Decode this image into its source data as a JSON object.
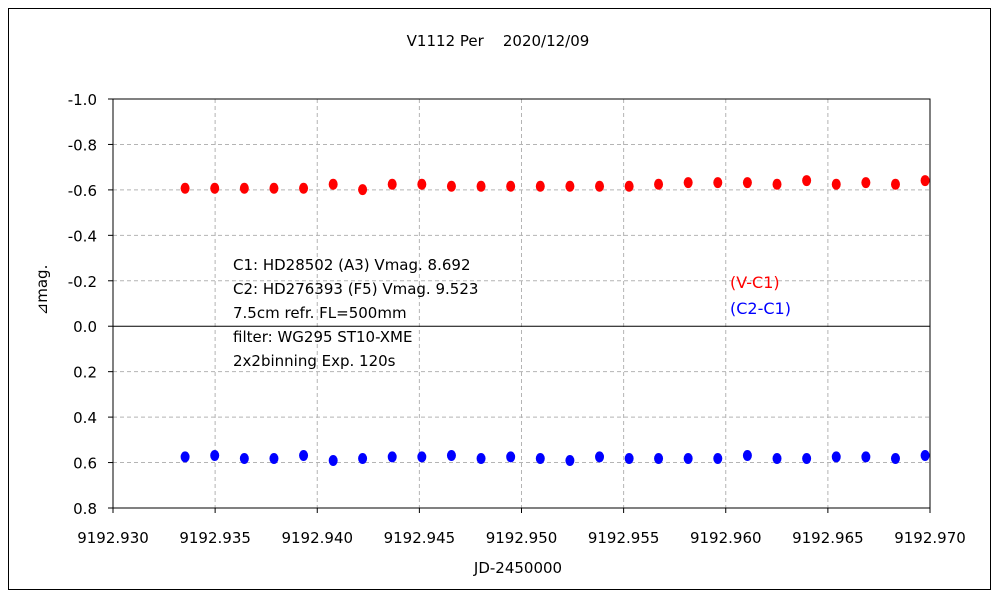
{
  "chart_data": {
    "type": "scatter",
    "title": "V1112 Per    2020/12/09",
    "xlabel": "JD-2450000",
    "ylabel": "⊿mag.",
    "xlim": [
      9192.93,
      9192.97
    ],
    "ylim": [
      -1.0,
      0.8
    ],
    "y_inverted": true,
    "grid": true,
    "xticks": [
      "9192.930",
      "9192.935",
      "9192.940",
      "9192.945",
      "9192.950",
      "9192.955",
      "9192.960",
      "9192.965",
      "9192.970"
    ],
    "xtick_values": [
      9192.93,
      9192.935,
      9192.94,
      9192.945,
      9192.95,
      9192.955,
      9192.96,
      9192.965,
      9192.97
    ],
    "yticks": [
      "-1.0",
      "-0.8",
      "-0.6",
      "-0.4",
      "-0.2",
      "0.0",
      "0.2",
      "0.4",
      "0.6",
      "0.8"
    ],
    "ytick_values": [
      -1.0,
      -0.8,
      -0.6,
      -0.4,
      -0.2,
      0.0,
      0.2,
      0.4,
      0.6,
      0.8
    ],
    "x": [
      9192.93353,
      9192.93498,
      9192.93643,
      9192.93788,
      9192.93933,
      9192.94078,
      9192.94222,
      9192.94367,
      9192.94512,
      9192.94657,
      9192.94802,
      9192.94947,
      9192.95092,
      9192.95237,
      9192.95382,
      9192.95527,
      9192.95671,
      9192.95816,
      9192.95961,
      9192.96106,
      9192.96251,
      9192.96396,
      9192.96541,
      9192.96686,
      9192.96831,
      9192.96976
    ],
    "series": [
      {
        "name": "(V-C1)",
        "color": "#ff0000",
        "values": [
          -0.607,
          -0.607,
          -0.607,
          -0.607,
          -0.607,
          -0.625,
          -0.601,
          -0.625,
          -0.625,
          -0.616,
          -0.616,
          -0.616,
          -0.616,
          -0.616,
          -0.616,
          -0.616,
          -0.625,
          -0.632,
          -0.632,
          -0.632,
          -0.625,
          -0.641,
          -0.625,
          -0.632,
          -0.625,
          -0.641
        ]
      },
      {
        "name": "(C2-C1)",
        "color": "#0000ff",
        "values": [
          0.575,
          0.569,
          0.582,
          0.582,
          0.569,
          0.591,
          0.582,
          0.575,
          0.575,
          0.569,
          0.582,
          0.575,
          0.582,
          0.591,
          0.575,
          0.582,
          0.582,
          0.582,
          0.582,
          0.569,
          0.582,
          0.582,
          0.575,
          0.575,
          0.582,
          0.569
        ]
      }
    ],
    "annotations": [
      "C1: HD28502 (A3) Vmag. 8.692",
      "C2: HD276393 (F5) Vmag. 9.523",
      "7.5cm refr. FL=500mm",
      "filter: WG295  ST10-XME",
      "2x2binning  Exp. 120s"
    ],
    "legend_placement": "right-middle"
  }
}
